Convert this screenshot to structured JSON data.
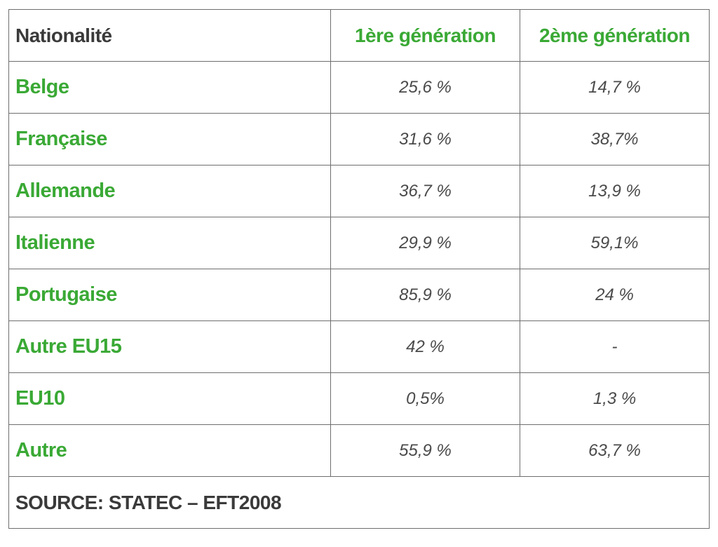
{
  "table": {
    "headers": [
      "Nationalité",
      "1ère génération",
      "2ème génération"
    ],
    "rows": [
      {
        "label": "Belge",
        "gen1": "25,6 %",
        "gen2": "14,7 %"
      },
      {
        "label": "Française",
        "gen1": "31,6 %",
        "gen2": "38,7%"
      },
      {
        "label": "Allemande",
        "gen1": "36,7 %",
        "gen2": "13,9 %"
      },
      {
        "label": "Italienne",
        "gen1": "29,9 %",
        "gen2": "59,1%"
      },
      {
        "label": "Portugaise",
        "gen1": "85,9 %",
        "gen2": "24 %"
      },
      {
        "label": "Autre EU15",
        "gen1": "42 %",
        "gen2": "-"
      },
      {
        "label": "EU10",
        "gen1": "0,5%",
        "gen2": "1,3 %"
      },
      {
        "label": "Autre",
        "gen1": "55,9 %",
        "gen2": "63,7 %"
      }
    ],
    "source": "SOURCE: STATEC – EFT2008"
  },
  "colors": {
    "accent_green": "#3aa935",
    "text_dark": "#3a3a3a",
    "border": "#6e6e6e"
  }
}
